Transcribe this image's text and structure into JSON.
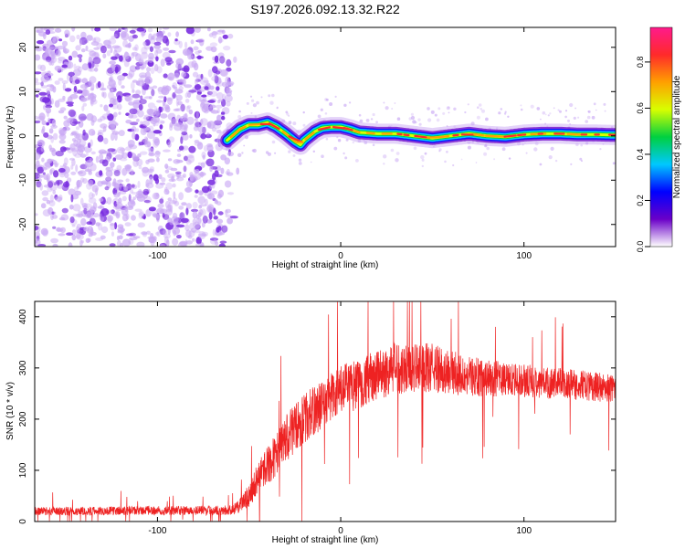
{
  "title": "S197.2026.092.13.32.R22",
  "colors": {
    "signal_line": "#ee2222",
    "scatter_purple": "#7a2ee0",
    "scatter_light": "#c9a8f4",
    "axis": "#000000"
  },
  "chart_data": [
    {
      "type": "heatmap",
      "title": "S197.2026.092.13.32.R22",
      "xlabel": "Height of straight line (km)",
      "ylabel": "Frequency (Hz)",
      "xlim": [
        -167,
        150
      ],
      "ylim": [
        -25,
        24.5
      ],
      "xticks": [
        -100,
        0,
        100
      ],
      "xtick_labels": [
        "-100",
        "0",
        "100"
      ],
      "yticks": [
        -20,
        -10,
        0,
        10,
        20
      ],
      "ytick_labels": [
        "-20",
        "-10",
        "0",
        "10",
        "20"
      ],
      "noise_region_x": [
        -167,
        -60
      ],
      "trace": {
        "x": [
          -62,
          -55,
          -50,
          -45,
          -40,
          -35,
          -30,
          -25,
          -22,
          -20,
          -17,
          -14,
          -10,
          -5,
          0,
          5,
          10,
          20,
          30,
          40,
          50,
          60,
          70,
          80,
          90,
          100,
          110,
          120,
          130,
          140,
          150
        ],
        "freq": [
          -1,
          1.5,
          2.5,
          2.5,
          3,
          2,
          0.5,
          -1.2,
          -2,
          -1,
          0,
          1,
          1.8,
          2,
          2,
          1.5,
          0.8,
          0.5,
          0.5,
          0,
          -0.5,
          0,
          0.5,
          0,
          -0.2,
          0.3,
          0.5,
          0.5,
          0.3,
          0.3,
          0.2
        ]
      },
      "colorbar": {
        "label": "Normalized spectral amplitude",
        "ticks": [
          0.0,
          0.2,
          0.4,
          0.6,
          0.8
        ],
        "tick_labels": [
          "0.0",
          "0.2",
          "0.4",
          "0.6",
          "0.8"
        ],
        "range": [
          0,
          0.95
        ],
        "colormap": [
          "#ffffff",
          "#6a00c8",
          "#0000ff",
          "#00c8ff",
          "#00d040",
          "#d8ff00",
          "#ffa000",
          "#ff2a2a",
          "#ff1a8c"
        ]
      }
    },
    {
      "type": "line",
      "xlabel": "Height of straight line (km)",
      "ylabel": "SNR (10 * v/v)",
      "xlim": [
        -167,
        150
      ],
      "ylim": [
        0,
        430
      ],
      "xticks": [
        -100,
        0,
        100
      ],
      "xtick_labels": [
        "-100",
        "0",
        "100"
      ],
      "yticks": [
        0,
        100,
        200,
        300,
        400
      ],
      "ytick_labels": [
        "0",
        "100",
        "200",
        "300",
        "400"
      ],
      "envelope": {
        "x": [
          -167,
          -60,
          -55,
          -50,
          -45,
          -40,
          -35,
          -30,
          -25,
          -20,
          -15,
          -10,
          -5,
          0,
          10,
          20,
          30,
          40,
          50,
          60,
          80,
          100,
          120,
          150
        ],
        "mean": [
          20,
          22,
          30,
          50,
          90,
          110,
          130,
          160,
          185,
          200,
          215,
          230,
          245,
          255,
          270,
          285,
          300,
          300,
          300,
          290,
          280,
          275,
          270,
          260
        ],
        "spread": [
          10,
          12,
          18,
          30,
          40,
          45,
          55,
          60,
          60,
          62,
          62,
          62,
          62,
          62,
          62,
          62,
          65,
          62,
          60,
          55,
          45,
          40,
          38,
          35
        ]
      }
    }
  ]
}
